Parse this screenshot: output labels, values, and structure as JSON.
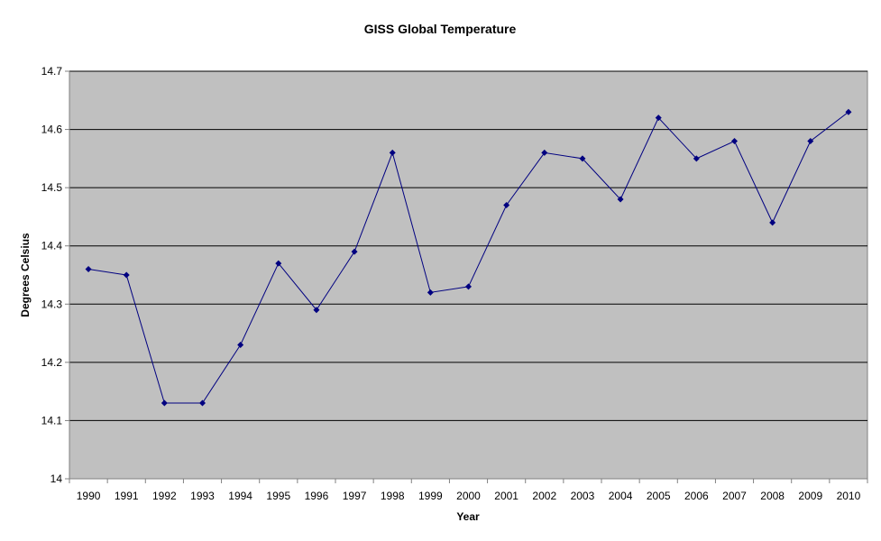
{
  "chart_data": {
    "type": "line",
    "title": "GISS Global Temperature",
    "xlabel": "Year",
    "ylabel": "Degrees Celsius",
    "categories": [
      "1990",
      "1991",
      "1992",
      "1993",
      "1994",
      "1995",
      "1996",
      "1997",
      "1998",
      "1999",
      "2000",
      "2001",
      "2002",
      "2003",
      "2004",
      "2005",
      "2006",
      "2007",
      "2008",
      "2009",
      "2010"
    ],
    "series": [
      {
        "values": [
          14.36,
          14.35,
          14.13,
          14.13,
          14.23,
          14.37,
          14.29,
          14.39,
          14.56,
          14.32,
          14.33,
          14.47,
          14.56,
          14.55,
          14.48,
          14.62,
          14.55,
          14.58,
          14.44,
          14.58,
          14.63
        ]
      }
    ],
    "ylim": [
      14,
      14.7
    ],
    "yticks": [
      "14",
      "14.1",
      "14.2",
      "14.3",
      "14.4",
      "14.5",
      "14.6",
      "14.7"
    ],
    "grid": true,
    "legend": "none",
    "colors": {
      "plot_background": "#C0C0C0",
      "line": "#000080",
      "marker": "#000080",
      "grid": "#000000",
      "axis": "#808080"
    }
  }
}
